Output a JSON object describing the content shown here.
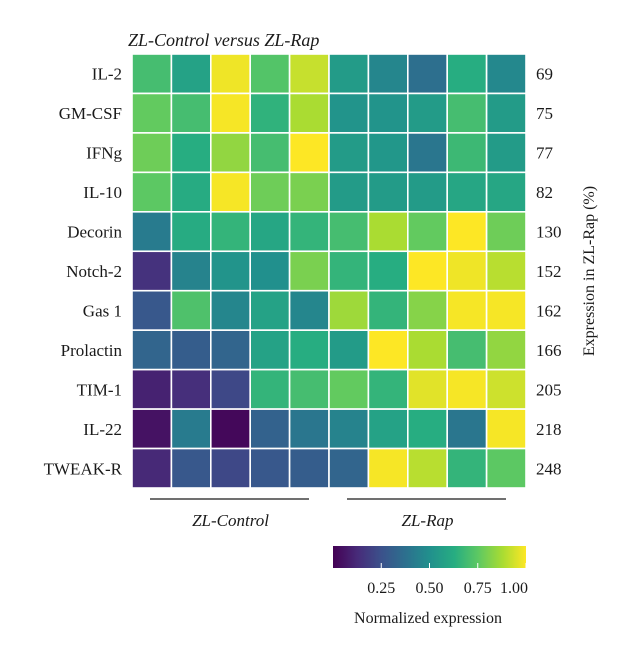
{
  "chart_data": {
    "type": "heatmap",
    "title": "ZL-Control versus ZL-Rap",
    "rows": [
      "IL-2",
      "GM-CSF",
      "IFNg",
      "IL-10",
      "Decorin",
      "Notch-2",
      "Gas 1",
      "Prolactin",
      "TIM-1",
      "IL-22",
      "TWEAK-R"
    ],
    "right_values": [
      "69",
      "75",
      "77",
      "82",
      "130",
      "152",
      "162",
      "166",
      "205",
      "218",
      "248"
    ],
    "right_axis_label": "Expression in ZL-Rap (%)",
    "groups": [
      {
        "label": "ZL-Control",
        "columns": [
          0,
          1,
          2,
          3,
          4
        ]
      },
      {
        "label": "ZL-Rap",
        "columns": [
          5,
          6,
          7,
          8,
          9
        ]
      }
    ],
    "values": [
      [
        0.7,
        0.58,
        0.98,
        0.73,
        0.92,
        0.55,
        0.46,
        0.37,
        0.63,
        0.47
      ],
      [
        0.76,
        0.7,
        0.99,
        0.65,
        0.88,
        0.52,
        0.52,
        0.55,
        0.7,
        0.55
      ],
      [
        0.78,
        0.63,
        0.84,
        0.7,
        1.0,
        0.55,
        0.53,
        0.4,
        0.68,
        0.55
      ],
      [
        0.75,
        0.62,
        0.99,
        0.78,
        0.8,
        0.55,
        0.55,
        0.55,
        0.6,
        0.6
      ],
      [
        0.42,
        0.62,
        0.66,
        0.6,
        0.66,
        0.7,
        0.88,
        0.76,
        1.0,
        0.78
      ],
      [
        0.15,
        0.45,
        0.52,
        0.5,
        0.8,
        0.66,
        0.63,
        1.0,
        0.98,
        0.9
      ],
      [
        0.28,
        0.72,
        0.46,
        0.58,
        0.46,
        0.86,
        0.66,
        0.82,
        0.99,
        0.99
      ],
      [
        0.33,
        0.3,
        0.33,
        0.58,
        0.63,
        0.55,
        1.0,
        0.88,
        0.7,
        0.84
      ],
      [
        0.1,
        0.14,
        0.22,
        0.66,
        0.7,
        0.76,
        0.66,
        0.96,
        0.99,
        0.93
      ],
      [
        0.05,
        0.42,
        0.02,
        0.32,
        0.4,
        0.45,
        0.58,
        0.63,
        0.4,
        0.99
      ],
      [
        0.12,
        0.28,
        0.22,
        0.28,
        0.3,
        0.33,
        0.99,
        0.9,
        0.66,
        0.75
      ]
    ],
    "colormap": "viridis",
    "colorbar": {
      "label": "Normalized expression",
      "ticks": [
        0.25,
        0.5,
        0.75,
        1.0
      ],
      "tick_labels": [
        "0.25",
        "0.50",
        "0.75",
        "1.00"
      ],
      "range": [
        0,
        1
      ]
    }
  }
}
